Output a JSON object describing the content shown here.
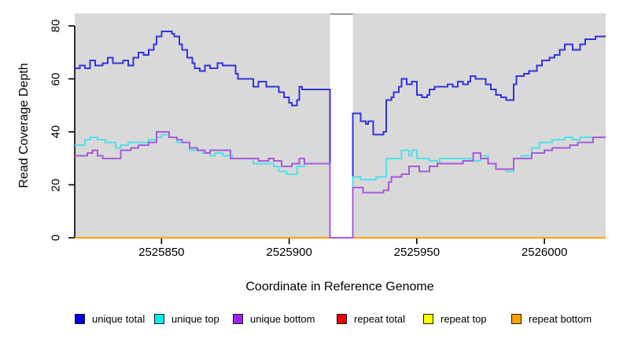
{
  "figure": {
    "background": "#FFFFFF",
    "panel_background": "#D9D9D9",
    "gap_band": {
      "fill": "#FFFFFF",
      "top_edge_color": "#9B9B9B"
    },
    "axis_color": "#000000"
  },
  "chart_data": {
    "type": "line",
    "subtype": "step",
    "title": "",
    "xlabel": "Coordinate in Reference Genome",
    "ylabel": "Read Coverage Depth",
    "xlim": [
      2525816,
      2526024
    ],
    "ylim": [
      0,
      80
    ],
    "x_ticks": [
      2525850,
      2525900,
      2525950,
      2526000
    ],
    "y_ticks": [
      0,
      20,
      40,
      60,
      80
    ],
    "grid": false,
    "legend_position": "bottom",
    "gap_region": {
      "x_start": 2525916,
      "x_end": 2525925
    },
    "draw_order": [
      "repeat total",
      "repeat top",
      "repeat bottom",
      "unique total",
      "unique top",
      "unique bottom"
    ],
    "legend": [
      {
        "label": "unique total",
        "color": "#0000EE"
      },
      {
        "label": "unique top",
        "color": "#00EEEE"
      },
      {
        "label": "unique bottom",
        "color": "#A020F0"
      },
      {
        "label": "repeat total",
        "color": "#EE0000"
      },
      {
        "label": "repeat top",
        "color": "#FFFF00"
      },
      {
        "label": "repeat bottom",
        "color": "#FFA500"
      }
    ],
    "series": [
      {
        "name": "unique total",
        "line_color": "#3434D9",
        "points": [
          [
            2525816,
            64
          ],
          [
            2525818,
            65
          ],
          [
            2525820,
            64
          ],
          [
            2525822,
            67
          ],
          [
            2525824,
            65
          ],
          [
            2525827,
            66
          ],
          [
            2525829,
            68
          ],
          [
            2525831,
            66
          ],
          [
            2525835,
            67
          ],
          [
            2525837,
            65
          ],
          [
            2525839,
            68
          ],
          [
            2525841,
            70
          ],
          [
            2525843,
            69
          ],
          [
            2525845,
            71
          ],
          [
            2525847,
            73
          ],
          [
            2525848,
            76
          ],
          [
            2525850,
            78
          ],
          [
            2525854,
            77
          ],
          [
            2525855,
            76
          ],
          [
            2525857,
            73
          ],
          [
            2525858,
            71
          ],
          [
            2525860,
            68
          ],
          [
            2525862,
            66
          ],
          [
            2525863,
            64
          ],
          [
            2525865,
            63
          ],
          [
            2525867,
            65
          ],
          [
            2525869,
            64
          ],
          [
            2525871,
            64
          ],
          [
            2525872,
            66
          ],
          [
            2525874,
            65
          ],
          [
            2525879,
            62
          ],
          [
            2525880,
            60
          ],
          [
            2525886,
            57
          ],
          [
            2525888,
            59
          ],
          [
            2525891,
            57
          ],
          [
            2525896,
            55
          ],
          [
            2525898,
            53
          ],
          [
            2525900,
            51
          ],
          [
            2525901,
            50
          ],
          [
            2525903,
            52
          ],
          [
            2525904,
            57
          ],
          [
            2525905,
            56
          ],
          [
            2525916,
            0
          ],
          [
            2525925,
            47
          ],
          [
            2525928,
            44
          ],
          [
            2525930,
            43
          ],
          [
            2525931,
            44
          ],
          [
            2525933,
            39
          ],
          [
            2525937,
            40
          ],
          [
            2525938,
            52
          ],
          [
            2525940,
            53
          ],
          [
            2525941,
            55
          ],
          [
            2525943,
            57
          ],
          [
            2525944,
            60
          ],
          [
            2525946,
            58
          ],
          [
            2525948,
            59
          ],
          [
            2525950,
            54
          ],
          [
            2525952,
            53
          ],
          [
            2525954,
            54
          ],
          [
            2525955,
            56
          ],
          [
            2525957,
            57
          ],
          [
            2525960,
            57
          ],
          [
            2525962,
            58
          ],
          [
            2525964,
            57
          ],
          [
            2525966,
            59
          ],
          [
            2525968,
            58
          ],
          [
            2525970,
            59
          ],
          [
            2525971,
            61
          ],
          [
            2525973,
            60
          ],
          [
            2525977,
            58
          ],
          [
            2525979,
            56
          ],
          [
            2525981,
            54
          ],
          [
            2525983,
            53
          ],
          [
            2525985,
            52
          ],
          [
            2525988,
            58
          ],
          [
            2525989,
            61
          ],
          [
            2525992,
            62
          ],
          [
            2525994,
            63
          ],
          [
            2525997,
            65
          ],
          [
            2525999,
            67
          ],
          [
            2526002,
            68
          ],
          [
            2526004,
            69
          ],
          [
            2526006,
            71
          ],
          [
            2526008,
            73
          ],
          [
            2526011,
            71
          ],
          [
            2526014,
            73
          ],
          [
            2526016,
            75
          ],
          [
            2526020,
            76
          ]
        ]
      },
      {
        "name": "unique top",
        "line_color": "#4FE1E8",
        "points": [
          [
            2525816,
            35
          ],
          [
            2525820,
            37
          ],
          [
            2525822,
            38
          ],
          [
            2525825,
            37
          ],
          [
            2525828,
            36
          ],
          [
            2525832,
            34
          ],
          [
            2525834,
            35
          ],
          [
            2525837,
            36
          ],
          [
            2525841,
            36
          ],
          [
            2525845,
            37
          ],
          [
            2525848,
            38
          ],
          [
            2525850,
            39
          ],
          [
            2525853,
            38
          ],
          [
            2525856,
            36
          ],
          [
            2525861,
            33
          ],
          [
            2525866,
            32
          ],
          [
            2525869,
            31
          ],
          [
            2525871,
            32
          ],
          [
            2525874,
            31
          ],
          [
            2525878,
            30
          ],
          [
            2525886,
            28
          ],
          [
            2525892,
            28
          ],
          [
            2525894,
            27
          ],
          [
            2525896,
            25
          ],
          [
            2525899,
            24
          ],
          [
            2525903,
            27
          ],
          [
            2525906,
            28
          ],
          [
            2525916,
            0
          ],
          [
            2525925,
            23
          ],
          [
            2525928,
            22
          ],
          [
            2525934,
            23
          ],
          [
            2525938,
            30
          ],
          [
            2525944,
            33
          ],
          [
            2525947,
            31
          ],
          [
            2525948,
            33
          ],
          [
            2525950,
            30
          ],
          [
            2525955,
            29
          ],
          [
            2525958,
            28
          ],
          [
            2525959,
            30
          ],
          [
            2525971,
            29
          ],
          [
            2525975,
            31
          ],
          [
            2525978,
            28
          ],
          [
            2525981,
            26
          ],
          [
            2525985,
            25
          ],
          [
            2525988,
            30
          ],
          [
            2525991,
            31
          ],
          [
            2525995,
            34
          ],
          [
            2525998,
            36
          ],
          [
            2526003,
            37
          ],
          [
            2526008,
            38
          ],
          [
            2526011,
            37
          ],
          [
            2526014,
            38
          ]
        ]
      },
      {
        "name": "unique bottom",
        "line_color": "#A55CD9",
        "points": [
          [
            2525816,
            31
          ],
          [
            2525821,
            32
          ],
          [
            2525823,
            33
          ],
          [
            2525825,
            31
          ],
          [
            2525827,
            30
          ],
          [
            2525834,
            33
          ],
          [
            2525838,
            34
          ],
          [
            2525841,
            35
          ],
          [
            2525845,
            36
          ],
          [
            2525848,
            40
          ],
          [
            2525853,
            38
          ],
          [
            2525856,
            37
          ],
          [
            2525858,
            36
          ],
          [
            2525861,
            34
          ],
          [
            2525864,
            33
          ],
          [
            2525867,
            32
          ],
          [
            2525869,
            33
          ],
          [
            2525877,
            30
          ],
          [
            2525886,
            30
          ],
          [
            2525888,
            29
          ],
          [
            2525892,
            30
          ],
          [
            2525894,
            29
          ],
          [
            2525897,
            27
          ],
          [
            2525901,
            28
          ],
          [
            2525904,
            30
          ],
          [
            2525906,
            28
          ],
          [
            2525916,
            0
          ],
          [
            2525925,
            19
          ],
          [
            2525929,
            17
          ],
          [
            2525937,
            18
          ],
          [
            2525939,
            21
          ],
          [
            2525940,
            23
          ],
          [
            2525944,
            24
          ],
          [
            2525947,
            27
          ],
          [
            2525951,
            25
          ],
          [
            2525955,
            27
          ],
          [
            2525958,
            28
          ],
          [
            2525968,
            29
          ],
          [
            2525972,
            32
          ],
          [
            2525975,
            30
          ],
          [
            2525978,
            28
          ],
          [
            2525981,
            26
          ],
          [
            2525988,
            30
          ],
          [
            2525995,
            32
          ],
          [
            2526000,
            33
          ],
          [
            2526003,
            34
          ],
          [
            2526010,
            35
          ],
          [
            2526013,
            36
          ],
          [
            2526019,
            38
          ]
        ]
      },
      {
        "name": "repeat total",
        "line_color": "#DD0000",
        "points": [
          [
            2525816,
            0
          ]
        ]
      },
      {
        "name": "repeat top",
        "line_color": "#F5F500",
        "points": [
          [
            2525816,
            0
          ]
        ]
      },
      {
        "name": "repeat bottom",
        "line_color": "#FFA500",
        "points": [
          [
            2525816,
            0
          ]
        ]
      }
    ]
  }
}
